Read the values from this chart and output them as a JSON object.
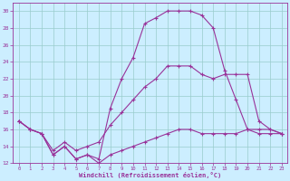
{
  "xlabel": "Windchill (Refroidissement éolien,°C)",
  "background_color": "#cceeff",
  "line_color": "#993399",
  "grid_color": "#99cccc",
  "xlim": [
    -0.5,
    23.5
  ],
  "ylim": [
    12,
    31
  ],
  "xticks": [
    0,
    1,
    2,
    3,
    4,
    5,
    6,
    7,
    8,
    9,
    10,
    11,
    12,
    13,
    14,
    15,
    16,
    17,
    18,
    19,
    20,
    21,
    22,
    23
  ],
  "yticks": [
    12,
    14,
    16,
    18,
    20,
    22,
    24,
    26,
    28,
    30
  ],
  "curve_top_x": [
    0,
    1,
    2,
    3,
    4,
    5,
    6,
    7,
    8,
    9,
    10,
    11,
    12,
    13,
    14,
    15,
    16,
    17,
    18,
    19,
    20,
    21,
    22,
    23
  ],
  "curve_top_y": [
    17.0,
    16.0,
    15.5,
    13.0,
    14.0,
    12.5,
    13.0,
    12.5,
    18.5,
    22.0,
    24.5,
    28.5,
    29.2,
    30.0,
    30.0,
    30.0,
    29.5,
    28.0,
    23.0,
    19.5,
    16.0,
    15.5,
    15.5,
    15.5
  ],
  "curve_mid_x": [
    0,
    1,
    2,
    3,
    4,
    5,
    6,
    7,
    8,
    9,
    10,
    11,
    12,
    13,
    14,
    15,
    16,
    17,
    18,
    19,
    20,
    21,
    22,
    23
  ],
  "curve_mid_y": [
    17.0,
    16.0,
    15.5,
    13.5,
    14.5,
    13.5,
    14.0,
    14.5,
    16.5,
    18.0,
    19.5,
    21.0,
    22.0,
    23.5,
    23.5,
    23.5,
    22.5,
    22.0,
    22.5,
    22.5,
    22.5,
    17.0,
    16.0,
    15.5
  ],
  "curve_bot_x": [
    0,
    1,
    2,
    3,
    4,
    5,
    6,
    7,
    8,
    9,
    10,
    11,
    12,
    13,
    14,
    15,
    16,
    17,
    18,
    19,
    20,
    21,
    22,
    23
  ],
  "curve_bot_y": [
    17.0,
    16.0,
    15.5,
    13.0,
    14.0,
    12.5,
    13.0,
    12.0,
    13.0,
    13.5,
    14.0,
    14.5,
    15.0,
    15.5,
    16.0,
    16.0,
    15.5,
    15.5,
    15.5,
    15.5,
    16.0,
    16.0,
    16.0,
    15.5
  ]
}
